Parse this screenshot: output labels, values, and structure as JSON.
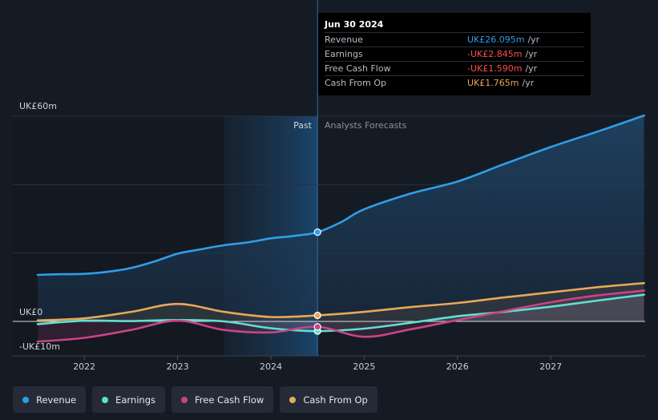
{
  "chart_data": {
    "type": "line",
    "y_axis_labels": [
      "UK£60m",
      "UK£0",
      "-UK£10m"
    ],
    "ylim": [
      -10,
      60
    ],
    "xlim": [
      2021.5,
      2028.0
    ],
    "x_ticks": [
      {
        "value": 2022,
        "label": "2022"
      },
      {
        "value": 2023,
        "label": "2023"
      },
      {
        "value": 2024,
        "label": "2024"
      },
      {
        "value": 2025,
        "label": "2025"
      },
      {
        "value": 2026,
        "label": "2026"
      },
      {
        "value": 2027,
        "label": "2027"
      }
    ],
    "past_label": "Past",
    "forecast_label": "Analysts Forecasts",
    "past_shade_start": 2023.5,
    "divider_x": 2024.5,
    "series": [
      {
        "name": "Revenue",
        "color": "#2f9ee8",
        "points": [
          [
            2021.5,
            13.6
          ],
          [
            2021.75,
            13.8
          ],
          [
            2022.0,
            13.9
          ],
          [
            2022.25,
            14.5
          ],
          [
            2022.5,
            15.6
          ],
          [
            2022.75,
            17.5
          ],
          [
            2023.0,
            19.8
          ],
          [
            2023.25,
            21.1
          ],
          [
            2023.5,
            22.3
          ],
          [
            2023.75,
            23.1
          ],
          [
            2024.0,
            24.3
          ],
          [
            2024.25,
            25.0
          ],
          [
            2024.5,
            26.095
          ],
          [
            2024.75,
            29.0
          ],
          [
            2025.0,
            32.8
          ],
          [
            2025.5,
            37.4
          ],
          [
            2026.0,
            40.9
          ],
          [
            2026.5,
            46.0
          ],
          [
            2027.0,
            51.0
          ],
          [
            2027.5,
            55.5
          ],
          [
            2028.0,
            60.2
          ]
        ]
      },
      {
        "name": "Earnings",
        "color": "#5fe0d1",
        "points": [
          [
            2021.5,
            -0.8
          ],
          [
            2022.0,
            0.2
          ],
          [
            2022.5,
            0.1
          ],
          [
            2023.0,
            0.4
          ],
          [
            2023.5,
            0.0
          ],
          [
            2024.0,
            -2.0
          ],
          [
            2024.5,
            -2.845
          ],
          [
            2025.0,
            -2.1
          ],
          [
            2025.5,
            -0.4
          ],
          [
            2026.0,
            1.5
          ],
          [
            2026.5,
            2.8
          ],
          [
            2027.0,
            4.3
          ],
          [
            2027.5,
            6.1
          ],
          [
            2028.0,
            7.8
          ]
        ]
      },
      {
        "name": "Free Cash Flow",
        "color": "#c94486",
        "points": [
          [
            2021.5,
            -5.9
          ],
          [
            2022.0,
            -4.8
          ],
          [
            2022.5,
            -2.5
          ],
          [
            2023.0,
            0.2
          ],
          [
            2023.5,
            -2.5
          ],
          [
            2024.0,
            -3.2
          ],
          [
            2024.5,
            -1.59
          ],
          [
            2025.0,
            -4.5
          ],
          [
            2025.5,
            -2.3
          ],
          [
            2026.0,
            0.4
          ],
          [
            2026.5,
            3.0
          ],
          [
            2027.0,
            5.6
          ],
          [
            2027.5,
            7.6
          ],
          [
            2028.0,
            9.0
          ]
        ]
      },
      {
        "name": "Cash From Op",
        "color": "#e8a85a",
        "points": [
          [
            2021.5,
            0.3
          ],
          [
            2022.0,
            0.9
          ],
          [
            2022.5,
            2.8
          ],
          [
            2023.0,
            5.1
          ],
          [
            2023.5,
            2.8
          ],
          [
            2024.0,
            1.3
          ],
          [
            2024.5,
            1.765
          ],
          [
            2025.0,
            2.8
          ],
          [
            2025.5,
            4.2
          ],
          [
            2026.0,
            5.4
          ],
          [
            2026.5,
            7.0
          ],
          [
            2027.0,
            8.5
          ],
          [
            2027.5,
            10.0
          ],
          [
            2028.0,
            11.2
          ]
        ]
      }
    ]
  },
  "tooltip": {
    "date": "Jun 30 2024",
    "rows": [
      {
        "label": "Revenue",
        "value": "UK£26.095m",
        "unit": "/yr",
        "color": "#2f9ee8"
      },
      {
        "label": "Earnings",
        "value": "-UK£2.845m",
        "unit": "/yr",
        "color": "#ff4d4f"
      },
      {
        "label": "Free Cash Flow",
        "value": "-UK£1.590m",
        "unit": "/yr",
        "color": "#ff4d4f"
      },
      {
        "label": "Cash From Op",
        "value": "UK£1.765m",
        "unit": "/yr",
        "color": "#e8a85a"
      }
    ]
  },
  "legend": [
    {
      "label": "Revenue",
      "color": "#2f9ee8"
    },
    {
      "label": "Earnings",
      "color": "#5fe0d1"
    },
    {
      "label": "Free Cash Flow",
      "color": "#c94486"
    },
    {
      "label": "Cash From Op",
      "color": "#e8a85a"
    }
  ]
}
